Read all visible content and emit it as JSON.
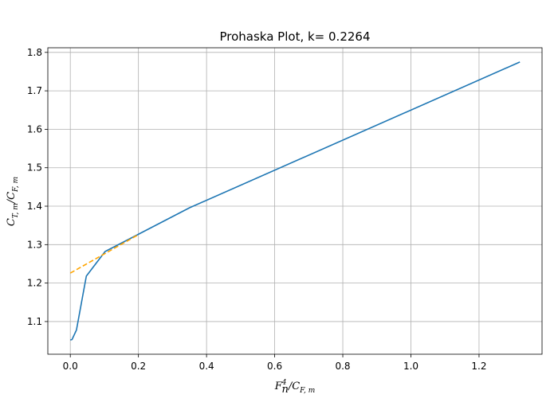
{
  "chart_data": {
    "type": "line",
    "title": "Prohaska Plot, k= 0.2264",
    "xlabel": "F_n^4/C_F,m",
    "ylabel": "C_T,m/C_F,m",
    "xlim": [
      -0.066,
      1.385
    ],
    "ylim": [
      1.015,
      1.812
    ],
    "xticks": [
      0.0,
      0.2,
      0.4,
      0.6,
      0.8,
      1.0,
      1.2
    ],
    "xtick_labels": [
      "0.0",
      "0.2",
      "0.4",
      "0.6",
      "0.8",
      "1.0",
      "1.2"
    ],
    "yticks": [
      1.1,
      1.2,
      1.3,
      1.4,
      1.5,
      1.6,
      1.7,
      1.8
    ],
    "ytick_labels": [
      "1.1",
      "1.2",
      "1.3",
      "1.4",
      "1.5",
      "1.6",
      "1.7",
      "1.8"
    ],
    "grid": true,
    "series": [
      {
        "style": "solid",
        "color": "#1f77b4",
        "x": [
          0.0,
          0.005,
          0.018,
          0.047,
          0.102,
          0.35,
          1.32
        ],
        "y": [
          1.052,
          1.053,
          1.078,
          1.218,
          1.282,
          1.396,
          1.775
        ]
      },
      {
        "style": "dashed",
        "color": "#ffa500",
        "x": [
          0.0,
          0.2
        ],
        "y": [
          1.226,
          1.326
        ]
      }
    ]
  }
}
